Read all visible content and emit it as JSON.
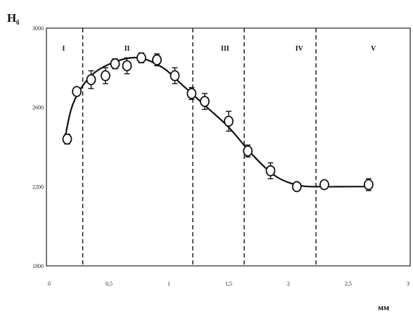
{
  "chart_data": {
    "type": "scatter",
    "title": "",
    "ylabel": "H",
    "ylabel_subscript": "б",
    "xlabel": "мм",
    "xlim": [
      0,
      3
    ],
    "ylim": [
      1800,
      3000
    ],
    "x_ticks": [
      0,
      0.5,
      1,
      1.5,
      2,
      2.5,
      3
    ],
    "x_tick_labels": [
      "0",
      "0,5",
      "1",
      "1,5",
      "2",
      "2,5",
      "3"
    ],
    "y_ticks": [
      1800,
      2200,
      2600,
      3000
    ],
    "y_tick_labels": [
      "1800",
      "2200",
      "2600",
      "3000"
    ],
    "grid": false,
    "legend": "none",
    "zone_boundaries": [
      0.28,
      1.2,
      1.63,
      2.23
    ],
    "zones": [
      {
        "label": "I",
        "x": 0.12
      },
      {
        "label": "II",
        "x": 0.65
      },
      {
        "label": "III",
        "x": 1.47
      },
      {
        "label": "IV",
        "x": 2.09
      },
      {
        "label": "V",
        "x": 2.71
      }
    ],
    "series": [
      {
        "style": "points-with-error-bars",
        "points": [
          {
            "x": 0.15,
            "y": 2440,
            "err": 25
          },
          {
            "x": 0.23,
            "y": 2680,
            "err": 20
          },
          {
            "x": 0.35,
            "y": 2740,
            "err": 45
          },
          {
            "x": 0.47,
            "y": 2760,
            "err": 40
          },
          {
            "x": 0.55,
            "y": 2820,
            "err": 25
          },
          {
            "x": 0.65,
            "y": 2810,
            "err": 40
          },
          {
            "x": 0.77,
            "y": 2850,
            "err": 25
          },
          {
            "x": 0.9,
            "y": 2840,
            "err": 30
          },
          {
            "x": 1.05,
            "y": 2760,
            "err": 40
          },
          {
            "x": 1.19,
            "y": 2670,
            "err": 30
          },
          {
            "x": 1.3,
            "y": 2630,
            "err": 40
          },
          {
            "x": 1.5,
            "y": 2530,
            "err": 50
          },
          {
            "x": 1.66,
            "y": 2380,
            "err": 30
          },
          {
            "x": 1.85,
            "y": 2280,
            "err": 40
          },
          {
            "x": 2.07,
            "y": 2200,
            "err": 20
          },
          {
            "x": 2.3,
            "y": 2210,
            "err": 20
          },
          {
            "x": 2.67,
            "y": 2210,
            "err": 30
          }
        ]
      },
      {
        "style": "fitted-curve",
        "points": [
          {
            "x": 0.13,
            "y": 2440
          },
          {
            "x": 0.2,
            "y": 2620
          },
          {
            "x": 0.35,
            "y": 2760
          },
          {
            "x": 0.55,
            "y": 2830
          },
          {
            "x": 0.75,
            "y": 2850
          },
          {
            "x": 0.95,
            "y": 2800
          },
          {
            "x": 1.1,
            "y": 2720
          },
          {
            "x": 1.3,
            "y": 2610
          },
          {
            "x": 1.5,
            "y": 2500
          },
          {
            "x": 1.7,
            "y": 2360
          },
          {
            "x": 1.9,
            "y": 2250
          },
          {
            "x": 2.1,
            "y": 2205
          },
          {
            "x": 2.3,
            "y": 2200
          },
          {
            "x": 2.5,
            "y": 2200
          },
          {
            "x": 2.7,
            "y": 2200
          }
        ]
      }
    ]
  }
}
